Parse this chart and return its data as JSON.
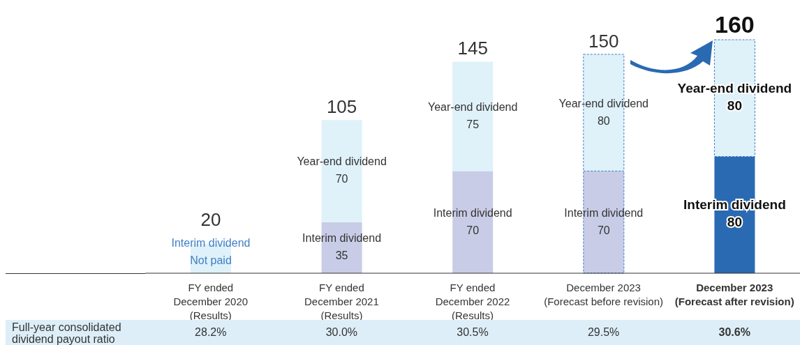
{
  "chart_data": {
    "type": "bar",
    "stacked": true,
    "categories": [
      "FY ended\nDecember 2020\n(Results)",
      "FY ended\nDecember 2021\n(Results)",
      "FY ended\nDecember 2022\n(Results)",
      "December 2023\n(Forecast before revision)",
      "December 2023\n(Forecast after revision)"
    ],
    "series": [
      {
        "name": "Interim dividend",
        "colors": [
          "#c9cce6",
          "#c9cce6",
          "#c9cce6",
          "#c9cce6",
          "#2a6ab3"
        ],
        "values": [
          0,
          35,
          70,
          70,
          80
        ],
        "value_labels": [
          "Not paid",
          "35",
          "70",
          "70",
          "80"
        ]
      },
      {
        "name": "Year-end dividend",
        "colors": [
          "#dff1f9",
          "#dff1f9",
          "#dff1f9",
          "#dff1f9",
          "#dff1f9"
        ],
        "values": [
          20,
          70,
          75,
          80,
          80
        ],
        "value_labels": [
          null,
          "70",
          "75",
          "80",
          "80"
        ]
      }
    ],
    "totals": [
      "20",
      "105",
      "145",
      "150",
      "160"
    ],
    "annotations": [
      "Full-year consolidated\ndividend payout ratio",
      "28.2%",
      "30.0%",
      "30.5%",
      "29.5%",
      "30.6%"
    ],
    "grid": false,
    "legend": false
  }
}
